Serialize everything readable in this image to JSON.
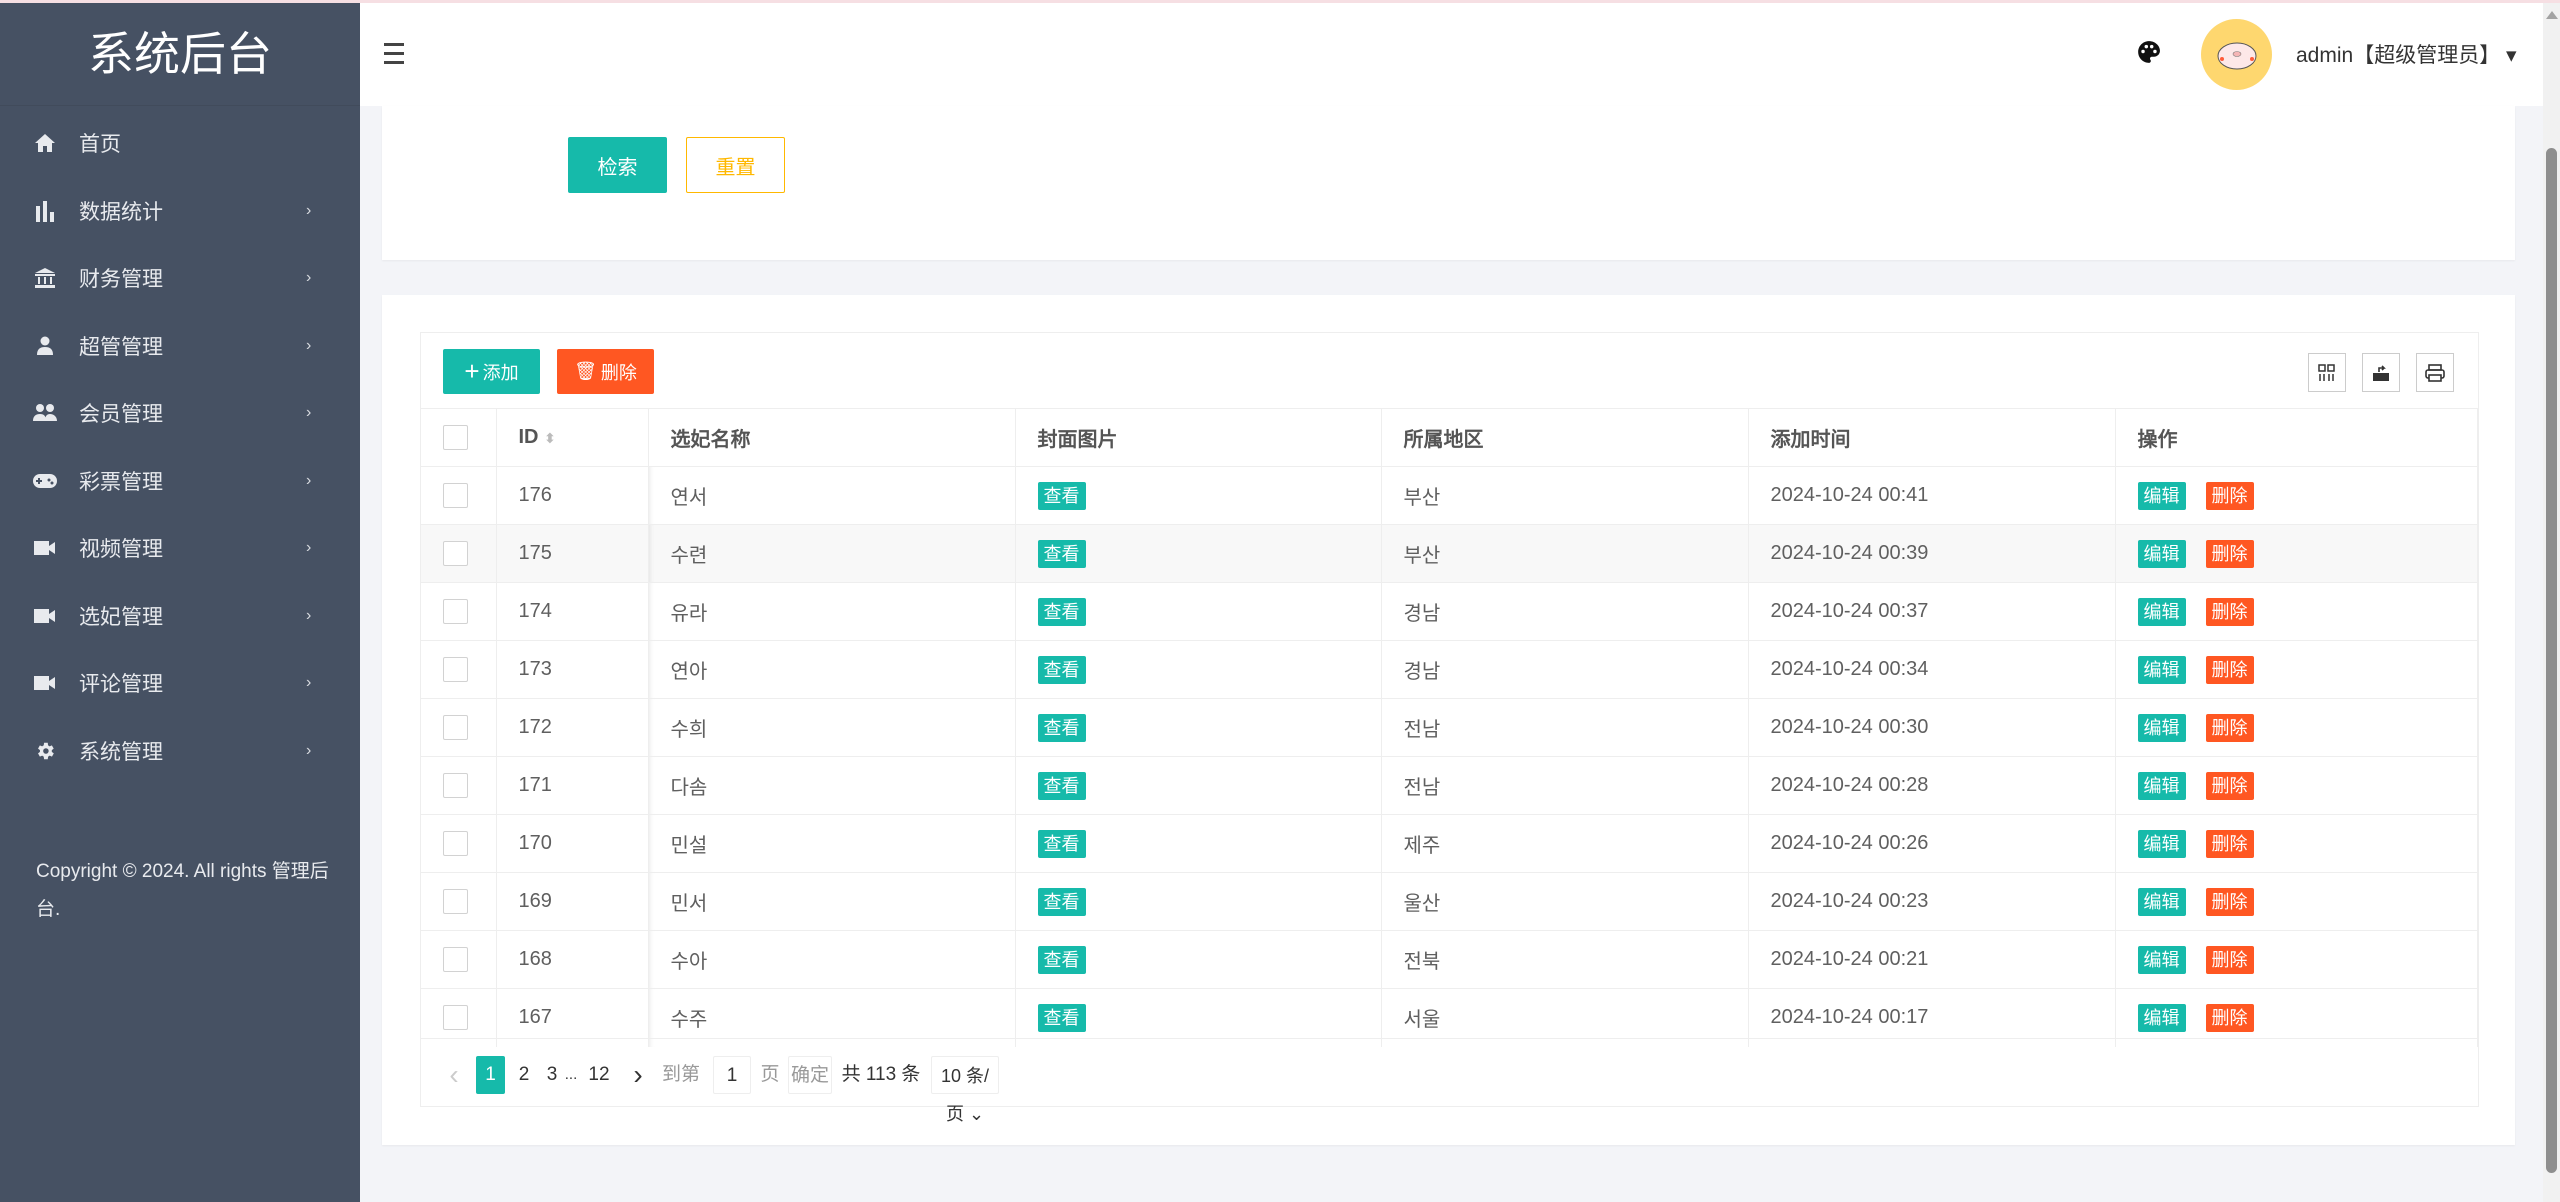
{
  "sidebar": {
    "title": "系统后台",
    "items": [
      {
        "label": "首页",
        "icon": "home-icon",
        "has_children": false
      },
      {
        "label": "数据统计",
        "icon": "bar-chart-icon",
        "has_children": true
      },
      {
        "label": "财务管理",
        "icon": "bank-icon",
        "has_children": true
      },
      {
        "label": "超管管理",
        "icon": "user-icon",
        "has_children": true
      },
      {
        "label": "会员管理",
        "icon": "users-icon",
        "has_children": true
      },
      {
        "label": "彩票管理",
        "icon": "gamepad-icon",
        "has_children": true
      },
      {
        "label": "视频管理",
        "icon": "video-icon",
        "has_children": true
      },
      {
        "label": "选妃管理",
        "icon": "video-icon",
        "has_children": true
      },
      {
        "label": "评论管理",
        "icon": "video-icon",
        "has_children": true
      },
      {
        "label": "系统管理",
        "icon": "gear-icon",
        "has_children": true
      }
    ],
    "chevron": "›",
    "copyright": "Copyright © 2024. All rights 管理后台."
  },
  "header": {
    "user_label": "admin【超级管理员】",
    "caret": "▾"
  },
  "search": {
    "search_label": "检索",
    "reset_label": "重置"
  },
  "toolbar": {
    "add_label": "添加",
    "delete_label": "删除"
  },
  "table": {
    "columns": [
      "ID",
      "选妃名称",
      "封面图片",
      "所属地区",
      "添加时间",
      "操作"
    ],
    "view_label": "查看",
    "edit_label": "编辑",
    "delete_label": "删除",
    "rows": [
      {
        "id": "176",
        "name": "연서",
        "region": "부산",
        "time": "2024-10-24 00:41"
      },
      {
        "id": "175",
        "name": "수련",
        "region": "부산",
        "time": "2024-10-24 00:39"
      },
      {
        "id": "174",
        "name": "유라",
        "region": "경남",
        "time": "2024-10-24 00:37"
      },
      {
        "id": "173",
        "name": "연아",
        "region": "경남",
        "time": "2024-10-24 00:34"
      },
      {
        "id": "172",
        "name": "수희",
        "region": "전남",
        "time": "2024-10-24 00:30"
      },
      {
        "id": "171",
        "name": "다솜",
        "region": "전남",
        "time": "2024-10-24 00:28"
      },
      {
        "id": "170",
        "name": "민설",
        "region": "제주",
        "time": "2024-10-24 00:26"
      },
      {
        "id": "169",
        "name": "민서",
        "region": "울산",
        "time": "2024-10-24 00:23"
      },
      {
        "id": "168",
        "name": "수아",
        "region": "전북",
        "time": "2024-10-24 00:21"
      },
      {
        "id": "167",
        "name": "수주",
        "region": "서울",
        "time": "2024-10-24 00:17"
      }
    ]
  },
  "pagination": {
    "prev": "‹",
    "next": "›",
    "pages": [
      "1",
      "2",
      "3"
    ],
    "ellipsis": "...",
    "last_page": "12",
    "current": "1",
    "goto_label": "到第",
    "goto_value": "1",
    "page_unit": "页",
    "confirm_label": "确定",
    "total_label": "共 113 条",
    "page_size": "10 条/页"
  },
  "colors": {
    "primary": "#16baaa",
    "danger": "#ff5722",
    "warning": "#ffb800",
    "sidebar_bg": "#465163"
  }
}
